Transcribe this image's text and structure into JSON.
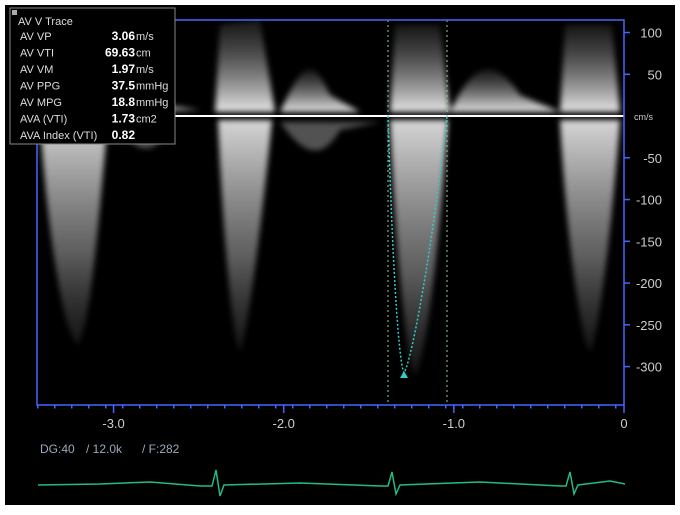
{
  "panel": {
    "title": "AV V Trace",
    "rows": [
      {
        "label": "AV VP",
        "value": "3.06",
        "unit": "m/s"
      },
      {
        "label": "AV VTI",
        "value": "69.63",
        "unit": "cm"
      },
      {
        "label": "AV VM",
        "value": "1.97",
        "unit": "m/s"
      },
      {
        "label": "AV PPG",
        "value": "37.5",
        "unit": "mmHg"
      },
      {
        "label": "AV MPG",
        "value": "18.8",
        "unit": "mmHg"
      },
      {
        "label": "AVA (VTI)",
        "value": "1.73",
        "unit": "cm2"
      },
      {
        "label": "AVA Index (VTI)",
        "value": "0.82",
        "unit": null
      }
    ]
  },
  "axes": {
    "y_unit": "cm/s",
    "ylim": [
      -346,
      115
    ],
    "yticks": [
      100,
      50,
      -50,
      -100,
      -150,
      -200,
      -250,
      -300
    ],
    "xlim": [
      -3.45,
      0
    ],
    "xticks": [
      {
        "value": -3,
        "label": "-3.0"
      },
      {
        "value": -2,
        "label": "-2.0"
      },
      {
        "value": -1,
        "label": "-1.0"
      },
      0
    ]
  },
  "footer": {
    "gain": "DG:40",
    "scale": "/ 12.0k",
    "frame": "/ F:282"
  }
}
